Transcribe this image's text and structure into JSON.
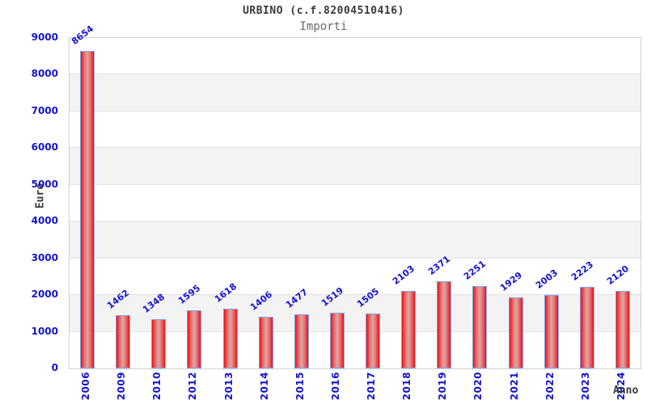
{
  "chart_data": {
    "type": "bar",
    "title": "URBINO (c.f.82004510416)",
    "subtitle": "Importi",
    "xlabel": "Anno",
    "ylabel": "Euro",
    "categories": [
      "2006",
      "2009",
      "2010",
      "2012",
      "2013",
      "2014",
      "2015",
      "2016",
      "2017",
      "2018",
      "2019",
      "2020",
      "2021",
      "2022",
      "2023",
      "2024"
    ],
    "values": [
      8654,
      1462,
      1348,
      1595,
      1618,
      1406,
      1477,
      1519,
      1505,
      2103,
      2371,
      2251,
      1929,
      2003,
      2223,
      2120
    ],
    "ylim": [
      0,
      9000
    ],
    "ytick_step": 1000,
    "yticks": [
      "0",
      "1000",
      "2000",
      "3000",
      "4000",
      "5000",
      "6000",
      "7000",
      "8000",
      "9000"
    ],
    "grid": "horizontal-bands",
    "legend": "none",
    "colors": {
      "tick_text": "#1414cc",
      "value_label_text": "#1414cc",
      "bar_border": "#7fa8ef",
      "bar_edge": "#ec1212",
      "bar_mid": "#e87070",
      "bar_center": "#d9a8a8",
      "band_gray": "#f3f3f3",
      "band_white": "#ffffff",
      "gridline": "#e2e2e2",
      "title_text": "#3a3a3a",
      "subtitle_text": "#6a6a6a"
    }
  }
}
